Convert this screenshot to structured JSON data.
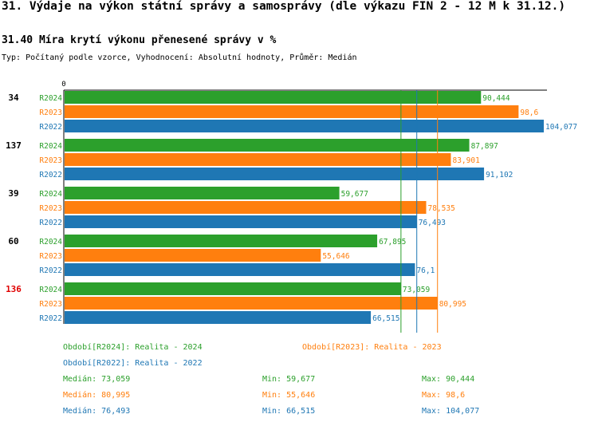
{
  "header": {
    "title": "31. Výdaje na výkon státní správy a samosprávy (dle výkazu FIN 2 - 12 M k 31.12.)",
    "subtitle": "31.40 Míra krytí výkonu přenesené správy v %",
    "meta": "Typ: Počítaný podle vzorce, Vyhodnocení: Absolutní hodnoty, Průměr: Medián"
  },
  "colors": {
    "R2024": "#2ca02c",
    "R2023": "#ff7f0e",
    "R2022": "#1f77b4",
    "highlight": "#e00000",
    "text": "#000000"
  },
  "chart_data": {
    "type": "bar",
    "orientation": "horizontal",
    "axis_zero_label": "0",
    "xlim": [
      0,
      104.077
    ],
    "groups": [
      {
        "id": "34",
        "highlight": false,
        "bars": [
          {
            "series": "R2024",
            "value": 90.444,
            "label": "90,444"
          },
          {
            "series": "R2023",
            "value": 98.6,
            "label": "98,6"
          },
          {
            "series": "R2022",
            "value": 104.077,
            "label": "104,077"
          }
        ]
      },
      {
        "id": "137",
        "highlight": false,
        "bars": [
          {
            "series": "R2024",
            "value": 87.897,
            "label": "87,897"
          },
          {
            "series": "R2023",
            "value": 83.901,
            "label": "83,901"
          },
          {
            "series": "R2022",
            "value": 91.102,
            "label": "91,102"
          }
        ]
      },
      {
        "id": "39",
        "highlight": false,
        "bars": [
          {
            "series": "R2024",
            "value": 59.677,
            "label": "59,677"
          },
          {
            "series": "R2023",
            "value": 78.535,
            "label": "78,535"
          },
          {
            "series": "R2022",
            "value": 76.493,
            "label": "76,493"
          }
        ]
      },
      {
        "id": "60",
        "highlight": false,
        "bars": [
          {
            "series": "R2024",
            "value": 67.895,
            "label": "67,895"
          },
          {
            "series": "R2023",
            "value": 55.646,
            "label": "55,646"
          },
          {
            "series": "R2022",
            "value": 76.1,
            "label": "76,1"
          }
        ]
      },
      {
        "id": "136",
        "highlight": true,
        "bars": [
          {
            "series": "R2024",
            "value": 73.059,
            "label": "73,059"
          },
          {
            "series": "R2023",
            "value": 80.995,
            "label": "80,995"
          },
          {
            "series": "R2022",
            "value": 66.515,
            "label": "66,515"
          }
        ]
      }
    ],
    "median_lines": [
      {
        "series": "R2024",
        "value": 73.059
      },
      {
        "series": "R2023",
        "value": 80.995
      },
      {
        "series": "R2022",
        "value": 76.493
      }
    ]
  },
  "legend": {
    "period_R2024": "Období[R2024]: Realita - 2024",
    "period_R2023": "Období[R2023]: Realita - 2023",
    "period_R2022": "Období[R2022]: Realita - 2022",
    "stats": [
      {
        "series": "R2024",
        "median": "Medián: 73,059",
        "min": "Min: 59,677",
        "max": "Max: 90,444"
      },
      {
        "series": "R2023",
        "median": "Medián: 80,995",
        "min": "Min: 55,646",
        "max": "Max: 98,6"
      },
      {
        "series": "R2022",
        "median": "Medián: 76,493",
        "min": "Min: 66,515",
        "max": "Max: 104,077"
      }
    ]
  }
}
